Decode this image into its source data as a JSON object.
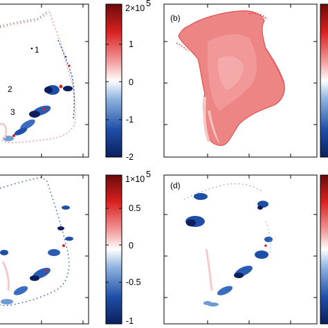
{
  "figure": {
    "panels": [
      {
        "id": "a",
        "label": "",
        "point_labels": [
          "1",
          "2",
          "3"
        ]
      },
      {
        "id": "b",
        "label": "(b)"
      },
      {
        "id": "c",
        "label": ""
      },
      {
        "id": "d",
        "label": "(d)"
      }
    ]
  },
  "chart_data": [
    {
      "type": "heatmap",
      "panel": "a",
      "title": "",
      "colorbar": {
        "multiplier": "2×10",
        "exponent": "5",
        "ticks": [
          "1",
          "0",
          "-1",
          "-2"
        ],
        "range": [
          -2,
          2
        ],
        "colormap": [
          "#0b1f5c",
          "#1f4ea8",
          "#6d9bd3",
          "#ffffff",
          "#f07a7a",
          "#d92020",
          "#6b0a0a"
        ]
      },
      "annotations": [
        "1",
        "2",
        "3"
      ]
    },
    {
      "type": "heatmap",
      "panel": "b",
      "title": "(b)",
      "colorbar": {
        "colormap": [
          "#0b1f5c",
          "#1f4ea8",
          "#6d9bd3",
          "#ffffff",
          "#f07a7a",
          "#d92020",
          "#6b0a0a"
        ]
      }
    },
    {
      "type": "heatmap",
      "panel": "c",
      "title": "",
      "colorbar": {
        "multiplier": "1×10",
        "exponent": "5",
        "ticks": [
          "0.5",
          "0",
          "-0.5",
          "-1"
        ],
        "range": [
          -1,
          1
        ],
        "colormap": [
          "#0b1f5c",
          "#1f4ea8",
          "#6d9bd3",
          "#ffffff",
          "#f07a7a",
          "#d92020",
          "#6b0a0a"
        ]
      }
    },
    {
      "type": "heatmap",
      "panel": "d",
      "title": "(d)",
      "colorbar": {
        "colormap": [
          "#0b1f5c",
          "#1f4ea8",
          "#6d9bd3",
          "#ffffff",
          "#f07a7a",
          "#d92020",
          "#6b0a0a"
        ]
      }
    }
  ]
}
